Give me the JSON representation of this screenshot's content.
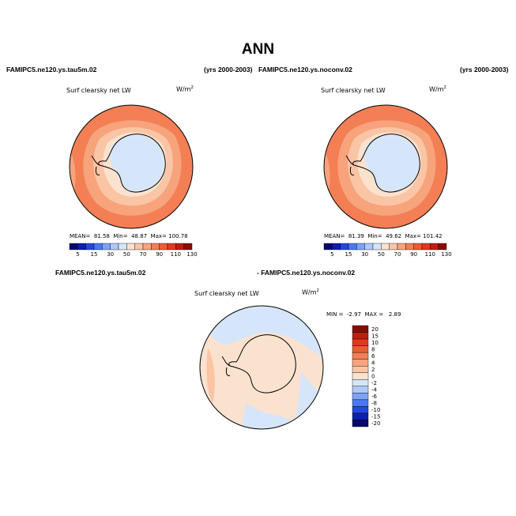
{
  "title": "ANN",
  "plots": [
    {
      "case": "FAMIPC5.ne120.ys.tau5m.02",
      "years": "(yrs 2000-2003)",
      "variable": "Surf clearsky net LW",
      "units": "W/m",
      "units_sup": "2",
      "mean_label": "MEAN=",
      "mean": "81.58",
      "min_label": "Min=",
      "min": "48.87",
      "max_label": "Max=",
      "max": "100.78"
    },
    {
      "case": "FAMIPC5.ne120.ys.noconv.02",
      "years": "(yrs 2000-2003)",
      "variable": "Surf clearsky net LW",
      "units": "W/m",
      "units_sup": "2",
      "mean_label": "MEAN=",
      "mean": "81.39",
      "min_label": "Min=",
      "min": "49.62",
      "max_label": "Max=",
      "max": "101.42"
    }
  ],
  "difference": {
    "case_a": "FAMIPC5.ne120.ys.tau5m.02",
    "case_b": "- FAMIPC5.ne120.ys.noconv.02",
    "variable": "Surf clearsky net LW",
    "units": "W/m",
    "units_sup": "2",
    "min_label": "MIN =",
    "min": "-2.97",
    "max_label": "MAX =",
    "max": "2.89"
  },
  "colorbar_abs": {
    "ticks": [
      "5",
      "15",
      "30",
      "50",
      "70",
      "90",
      "110",
      "130"
    ],
    "colors": [
      "#08086b",
      "#0b1fb3",
      "#2248e0",
      "#4a78f0",
      "#7ea3f5",
      "#afc9f7",
      "#d6e6fa",
      "#fbe2cf",
      "#f9c5a5",
      "#f7a37c",
      "#f47f55",
      "#ef5a33",
      "#e0391d",
      "#c01c10",
      "#8b0a05"
    ]
  },
  "colorbar_diff": {
    "ticks": [
      "20",
      "15",
      "10",
      "8",
      "6",
      "4",
      "2",
      "0",
      "-2",
      "-4",
      "-6",
      "-8",
      "-10",
      "-15",
      "-20"
    ],
    "colors": [
      "#8b0a05",
      "#c01c10",
      "#e0391d",
      "#ef5a33",
      "#f47f55",
      "#f7a37c",
      "#f9c5a5",
      "#fbe2cf",
      "#d6e6fa",
      "#afc9f7",
      "#7ea3f5",
      "#4a78f0",
      "#2248e0",
      "#0b1fb3",
      "#08086b"
    ]
  },
  "map_colors": {
    "ocean_high": "#f47f55",
    "ocean_mid": "#f7a37c",
    "ocean_low": "#f9c5a5",
    "coast_band": "#fbe2cf",
    "ice": "#d6e6fa",
    "diff_pos": "#fbe2cf",
    "diff_neg": "#d6e6fa",
    "diff_strong": "#f9c5a5"
  }
}
